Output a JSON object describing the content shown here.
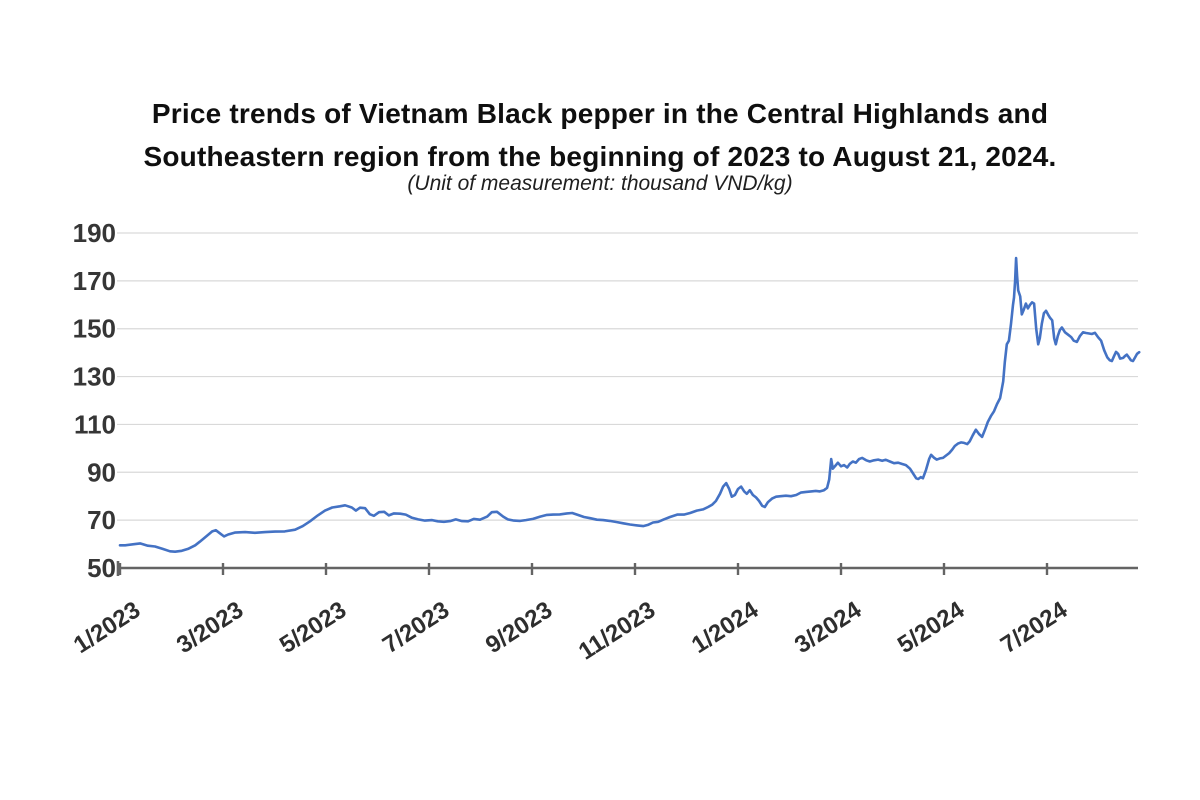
{
  "header": {
    "title_lines": [
      "Price trends of Vietnam Black pepper in the Central Highlands and",
      "Southeastern region from the beginning of 2023 to August 21, 2024."
    ],
    "subtitle": "(Unit of measurement: thousand VND/kg)"
  },
  "chart_data": {
    "type": "line",
    "title": "Price trends of Vietnam Black pepper in the Central Highlands and Southeastern region from the beginning of 2023 to August 21, 2024.",
    "subtitle": "(Unit of measurement: thousand VND/kg)",
    "unit": "thousand VND/kg",
    "grid": true,
    "legend": false,
    "colors": {
      "line": "#4472c4",
      "grid": "#d9d9d9",
      "axis": "#646464",
      "tick_label": "#363636"
    },
    "y_axis": {
      "range": [
        50,
        190
      ],
      "ticks": [
        50,
        70,
        90,
        110,
        130,
        150,
        170,
        190
      ]
    },
    "x_axis": {
      "range_months": [
        0,
        19.8
      ],
      "ticks": [
        {
          "m": 0,
          "label": "1/2023"
        },
        {
          "m": 2,
          "label": "3/2023"
        },
        {
          "m": 4,
          "label": "5/2023"
        },
        {
          "m": 6,
          "label": "7/2023"
        },
        {
          "m": 8,
          "label": "9/2023"
        },
        {
          "m": 10,
          "label": "11/2023"
        },
        {
          "m": 12,
          "label": "1/2024"
        },
        {
          "m": 14,
          "label": "3/2024"
        },
        {
          "m": 16,
          "label": "5/2024"
        },
        {
          "m": 18,
          "label": "7/2024"
        }
      ]
    },
    "series": [
      {
        "name": "Black pepper price (thousand VND/kg)",
        "color": "#4472c4",
        "points": [
          [
            0.0,
            59.5
          ],
          [
            0.1,
            59.5
          ],
          [
            0.29,
            60.0
          ],
          [
            0.39,
            60.3
          ],
          [
            0.54,
            59.3
          ],
          [
            0.68,
            59.0
          ],
          [
            0.83,
            58.0
          ],
          [
            0.97,
            57.0
          ],
          [
            1.07,
            56.8
          ],
          [
            1.2,
            57.2
          ],
          [
            1.32,
            58.0
          ],
          [
            1.46,
            59.5
          ],
          [
            1.55,
            61.0
          ],
          [
            1.69,
            63.5
          ],
          [
            1.79,
            65.3
          ],
          [
            1.86,
            65.8
          ],
          [
            1.94,
            64.5
          ],
          [
            2.02,
            63.2
          ],
          [
            2.1,
            64.0
          ],
          [
            2.23,
            64.8
          ],
          [
            2.43,
            65.0
          ],
          [
            2.62,
            64.7
          ],
          [
            2.82,
            65.0
          ],
          [
            3.01,
            65.2
          ],
          [
            3.2,
            65.3
          ],
          [
            3.4,
            66.0
          ],
          [
            3.55,
            67.5
          ],
          [
            3.69,
            69.5
          ],
          [
            3.84,
            72.0
          ],
          [
            3.98,
            74.0
          ],
          [
            4.12,
            75.3
          ],
          [
            4.27,
            75.8
          ],
          [
            4.37,
            76.2
          ],
          [
            4.5,
            75.3
          ],
          [
            4.58,
            74.0
          ],
          [
            4.66,
            75.2
          ],
          [
            4.76,
            75.0
          ],
          [
            4.85,
            72.5
          ],
          [
            4.93,
            71.8
          ],
          [
            5.03,
            73.3
          ],
          [
            5.13,
            73.5
          ],
          [
            5.22,
            72.0
          ],
          [
            5.32,
            72.8
          ],
          [
            5.44,
            72.7
          ],
          [
            5.55,
            72.3
          ],
          [
            5.67,
            71.0
          ],
          [
            5.79,
            70.3
          ],
          [
            5.92,
            69.8
          ],
          [
            6.06,
            70.0
          ],
          [
            6.17,
            69.5
          ],
          [
            6.29,
            69.3
          ],
          [
            6.41,
            69.6
          ],
          [
            6.52,
            70.3
          ],
          [
            6.64,
            69.6
          ],
          [
            6.76,
            69.5
          ],
          [
            6.87,
            70.5
          ],
          [
            6.99,
            70.2
          ],
          [
            7.13,
            71.5
          ],
          [
            7.22,
            73.3
          ],
          [
            7.32,
            73.5
          ],
          [
            7.44,
            71.5
          ],
          [
            7.53,
            70.3
          ],
          [
            7.65,
            69.8
          ],
          [
            7.77,
            69.7
          ],
          [
            7.88,
            70.0
          ],
          [
            8.02,
            70.5
          ],
          [
            8.16,
            71.5
          ],
          [
            8.29,
            72.2
          ],
          [
            8.41,
            72.3
          ],
          [
            8.54,
            72.4
          ],
          [
            8.68,
            72.8
          ],
          [
            8.78,
            73.0
          ],
          [
            8.89,
            72.2
          ],
          [
            9.01,
            71.3
          ],
          [
            9.13,
            70.8
          ],
          [
            9.26,
            70.2
          ],
          [
            9.38,
            70.0
          ],
          [
            9.51,
            69.7
          ],
          [
            9.65,
            69.2
          ],
          [
            9.77,
            68.7
          ],
          [
            9.9,
            68.2
          ],
          [
            10.04,
            67.8
          ],
          [
            10.16,
            67.5
          ],
          [
            10.25,
            68.0
          ],
          [
            10.35,
            69.0
          ],
          [
            10.45,
            69.3
          ],
          [
            10.56,
            70.3
          ],
          [
            10.68,
            71.3
          ],
          [
            10.82,
            72.3
          ],
          [
            10.95,
            72.3
          ],
          [
            11.07,
            73.0
          ],
          [
            11.2,
            74.0
          ],
          [
            11.32,
            74.5
          ],
          [
            11.42,
            75.5
          ],
          [
            11.5,
            76.5
          ],
          [
            11.57,
            78.0
          ],
          [
            11.65,
            81.0
          ],
          [
            11.71,
            84.0
          ],
          [
            11.77,
            85.5
          ],
          [
            11.83,
            83.0
          ],
          [
            11.88,
            79.8
          ],
          [
            11.94,
            80.5
          ],
          [
            12.0,
            83.0
          ],
          [
            12.06,
            84.0
          ],
          [
            12.12,
            82.0
          ],
          [
            12.17,
            81.0
          ],
          [
            12.23,
            82.5
          ],
          [
            12.29,
            80.5
          ],
          [
            12.35,
            79.5
          ],
          [
            12.41,
            78.0
          ],
          [
            12.47,
            76.0
          ],
          [
            12.52,
            75.5
          ],
          [
            12.58,
            77.5
          ],
          [
            12.66,
            79.0
          ],
          [
            12.74,
            79.8
          ],
          [
            12.83,
            80.0
          ],
          [
            12.93,
            80.2
          ],
          [
            13.03,
            80.0
          ],
          [
            13.13,
            80.5
          ],
          [
            13.22,
            81.5
          ],
          [
            13.32,
            81.8
          ],
          [
            13.42,
            82.0
          ],
          [
            13.51,
            82.2
          ],
          [
            13.59,
            82.0
          ],
          [
            13.67,
            82.5
          ],
          [
            13.73,
            83.5
          ],
          [
            13.77,
            87.0
          ],
          [
            13.81,
            95.5
          ],
          [
            13.84,
            91.5
          ],
          [
            13.9,
            93.0
          ],
          [
            13.94,
            94.0
          ],
          [
            14.0,
            92.5
          ],
          [
            14.06,
            93.0
          ],
          [
            14.12,
            92.0
          ],
          [
            14.17,
            93.5
          ],
          [
            14.23,
            94.5
          ],
          [
            14.29,
            94.0
          ],
          [
            14.35,
            95.5
          ],
          [
            14.41,
            96.0
          ],
          [
            14.49,
            95.0
          ],
          [
            14.56,
            94.5
          ],
          [
            14.64,
            95.0
          ],
          [
            14.72,
            95.3
          ],
          [
            14.8,
            94.8
          ],
          [
            14.87,
            95.2
          ],
          [
            14.95,
            94.5
          ],
          [
            15.03,
            93.8
          ],
          [
            15.11,
            94.0
          ],
          [
            15.18,
            93.5
          ],
          [
            15.26,
            93.0
          ],
          [
            15.34,
            91.5
          ],
          [
            15.4,
            89.5
          ],
          [
            15.46,
            87.5
          ],
          [
            15.5,
            87.2
          ],
          [
            15.55,
            88.0
          ],
          [
            15.59,
            87.5
          ],
          [
            15.65,
            91.0
          ],
          [
            15.71,
            95.5
          ],
          [
            15.75,
            97.3
          ],
          [
            15.81,
            96.0
          ],
          [
            15.86,
            95.3
          ],
          [
            15.92,
            95.8
          ],
          [
            15.98,
            96.0
          ],
          [
            16.04,
            97.0
          ],
          [
            16.1,
            98.0
          ],
          [
            16.16,
            99.5
          ],
          [
            16.21,
            101.0
          ],
          [
            16.27,
            102.0
          ],
          [
            16.33,
            102.5
          ],
          [
            16.39,
            102.3
          ],
          [
            16.45,
            101.8
          ],
          [
            16.5,
            103.0
          ],
          [
            16.56,
            105.5
          ],
          [
            16.62,
            107.8
          ],
          [
            16.68,
            106.0
          ],
          [
            16.74,
            104.8
          ],
          [
            16.8,
            108.0
          ],
          [
            16.85,
            111.0
          ],
          [
            16.91,
            113.5
          ],
          [
            16.97,
            115.5
          ],
          [
            17.03,
            118.5
          ],
          [
            17.09,
            121.0
          ],
          [
            17.15,
            128.0
          ],
          [
            17.18,
            136.0
          ],
          [
            17.22,
            143.5
          ],
          [
            17.26,
            145.0
          ],
          [
            17.3,
            152.0
          ],
          [
            17.34,
            160.0
          ],
          [
            17.36,
            163.0
          ],
          [
            17.38,
            170.0
          ],
          [
            17.4,
            179.5
          ],
          [
            17.42,
            172.0
          ],
          [
            17.44,
            166.0
          ],
          [
            17.48,
            163.5
          ],
          [
            17.51,
            156.0
          ],
          [
            17.55,
            158.0
          ],
          [
            17.59,
            160.5
          ],
          [
            17.63,
            158.5
          ],
          [
            17.67,
            160.0
          ],
          [
            17.71,
            161.0
          ],
          [
            17.75,
            160.5
          ],
          [
            17.79,
            150.0
          ],
          [
            17.83,
            143.5
          ],
          [
            17.86,
            146.0
          ],
          [
            17.9,
            152.0
          ],
          [
            17.94,
            156.5
          ],
          [
            17.98,
            157.5
          ],
          [
            18.02,
            156.0
          ],
          [
            18.06,
            154.5
          ],
          [
            18.1,
            153.5
          ],
          [
            18.14,
            146.0
          ],
          [
            18.17,
            143.5
          ],
          [
            18.21,
            147.0
          ],
          [
            18.25,
            149.5
          ],
          [
            18.29,
            150.5
          ],
          [
            18.35,
            148.5
          ],
          [
            18.41,
            147.5
          ],
          [
            18.47,
            146.5
          ],
          [
            18.52,
            145.0
          ],
          [
            18.58,
            144.5
          ],
          [
            18.64,
            147.0
          ],
          [
            18.7,
            148.5
          ],
          [
            18.76,
            148.2
          ],
          [
            18.82,
            148.0
          ],
          [
            18.87,
            147.8
          ],
          [
            18.93,
            148.3
          ],
          [
            18.99,
            146.5
          ],
          [
            19.05,
            145.0
          ],
          [
            19.11,
            141.0
          ],
          [
            19.17,
            138.0
          ],
          [
            19.22,
            136.8
          ],
          [
            19.26,
            136.5
          ],
          [
            19.3,
            138.5
          ],
          [
            19.34,
            140.3
          ],
          [
            19.38,
            139.5
          ],
          [
            19.42,
            137.5
          ],
          [
            19.48,
            137.8
          ],
          [
            19.51,
            138.5
          ],
          [
            19.55,
            139.2
          ],
          [
            19.59,
            138.0
          ],
          [
            19.63,
            136.8
          ],
          [
            19.67,
            136.5
          ],
          [
            19.71,
            138.0
          ],
          [
            19.75,
            139.5
          ],
          [
            19.79,
            140.2
          ]
        ]
      }
    ]
  }
}
